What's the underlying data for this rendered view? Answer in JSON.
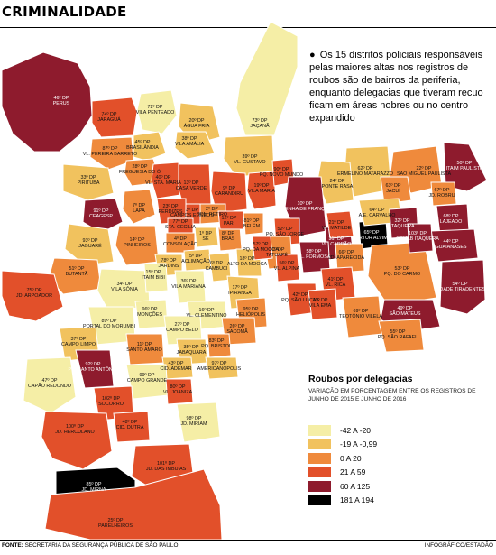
{
  "title": "CRIMINALIDADE",
  "note": "Os 15 distritos policiais responsáveis pelas maiores altas nos registros de roubos são de bairros da periferia, enquanto delegacias que tiveram recuo ficam em áreas nobres ou no centro expandido",
  "legend": {
    "title": "Roubos por delegacias",
    "subtitle": "VARIAÇÃO EM PORCENTAGEM ENTRE OS REGISTROS DE JUNHO DE 2015 E JUNHO DE 2016",
    "items": [
      {
        "label": "-42 A -20",
        "color": "#f5eea6"
      },
      {
        "label": "-19 A -0,99",
        "color": "#f1c25e"
      },
      {
        "label": "0 A 20",
        "color": "#ef8a3c"
      },
      {
        "label": "21 A 59",
        "color": "#e2502a"
      },
      {
        "label": "60 A 125",
        "color": "#8e1b2d"
      },
      {
        "label": "181 A 194",
        "color": "#000000"
      }
    ]
  },
  "source_label": "FONTE:",
  "source_text": "SECRETARIA DA SEGURANÇA PÚBLICA DE SÃO PAULO",
  "credit": "INFOGRÁFICO/ESTADÃO",
  "districts": [
    {
      "code": "46º DP",
      "name": "PERUS",
      "class": 4
    },
    {
      "code": "72º DP",
      "name": "VILA PENTEADO",
      "class": 0
    },
    {
      "code": "74º DP",
      "name": "JARAGUÁ",
      "class": 3
    },
    {
      "code": "87º DP",
      "name": "VL. PEREIRA BARRETO",
      "class": 2
    },
    {
      "code": "45º DP",
      "name": "BRASILÂNDIA",
      "class": 1
    },
    {
      "code": "20º DP",
      "name": "ÁGUA FRIA",
      "class": 1
    },
    {
      "code": "73º DP",
      "name": "JAÇANÃ",
      "class": 0
    },
    {
      "code": "38º DP",
      "name": "VILA AMÁLIA",
      "class": 1
    },
    {
      "code": "39º DP",
      "name": "VL. GUSTAVO",
      "class": 1
    },
    {
      "code": "33º DP",
      "name": "PIRITUBA",
      "class": 1
    },
    {
      "code": "28º DP",
      "name": "FREGUESIA DO Ó",
      "class": 2
    },
    {
      "code": "40º DP",
      "name": "VL. STA. MARIA",
      "class": 3
    },
    {
      "code": "13º DP",
      "name": "CASA VERDE",
      "class": 3
    },
    {
      "code": "9º DP",
      "name": "CARANDIRU",
      "class": 3
    },
    {
      "code": "19º DP",
      "name": "VILA MARIA",
      "class": 3
    },
    {
      "code": "90º DP",
      "name": "PQ. NOVO MUNDO",
      "class": 3
    },
    {
      "code": "62º DP",
      "name": "ERMELINO MATARAZZO",
      "class": 1
    },
    {
      "code": "24º DP",
      "name": "PONTE RASA",
      "class": 1
    },
    {
      "code": "22º DP",
      "name": "SÃO MIGUEL PAULISTA",
      "class": 2
    },
    {
      "code": "63º DP",
      "name": "JACUÍ",
      "class": 2
    },
    {
      "code": "50º DP",
      "name": "ITAIM PAULISTA",
      "class": 4
    },
    {
      "code": "67º DP",
      "name": "JD. ROBRU",
      "class": 2
    },
    {
      "code": "91º DP",
      "name": "CEAGESP",
      "class": 4
    },
    {
      "code": "7º DP",
      "name": "LAPA",
      "class": 2
    },
    {
      "code": "23º DP",
      "name": "PERDIZES",
      "class": 3
    },
    {
      "code": "2º DP",
      "name": "BOM RETIRO",
      "class": 2
    },
    {
      "code": "3º DP",
      "name": "CAMPOS ELÍSEOS",
      "class": 3
    },
    {
      "code": "77º DP",
      "name": "STA. CECÍLIA",
      "class": 3
    },
    {
      "code": "8º DP",
      "name": "BRÁS",
      "class": 2
    },
    {
      "code": "12º DP",
      "name": "PARI",
      "class": 3
    },
    {
      "code": "81º DP",
      "name": "BELÉM",
      "class": 2
    },
    {
      "code": "10º DP",
      "name": "PENHA DE FRANÇA",
      "class": 4
    },
    {
      "code": "31º DP",
      "name": "VL. CARRÃO",
      "class": 4
    },
    {
      "code": "52º DP",
      "name": "PQ. SÃO JORGE",
      "class": 3
    },
    {
      "code": "30º DP",
      "name": "TATUAPÉ",
      "class": 2
    },
    {
      "code": "58º DP",
      "name": "VL. FORMOSA",
      "class": 4
    },
    {
      "code": "21º DP",
      "name": "VL. MATILDE",
      "class": 3
    },
    {
      "code": "65º DP",
      "name": "ARTUR ALVIM",
      "class": 5
    },
    {
      "code": "64º DP",
      "name": "A.E. CARVALHO",
      "class": 1
    },
    {
      "code": "66º DP",
      "name": "JD. APARECIDA",
      "class": 2
    },
    {
      "code": "41º DP",
      "name": "VL. RICA",
      "class": 3
    },
    {
      "code": "53º DP",
      "name": "PQ. DO CARMO",
      "class": 2
    },
    {
      "code": "68º DP",
      "name": "LAJEADO",
      "class": 4
    },
    {
      "code": "44º DP",
      "name": "GUAIANASES",
      "class": 4
    },
    {
      "code": "32º DP",
      "name": "ITAQUERA",
      "class": 4
    },
    {
      "code": "103º DP",
      "name": "COHAB ITAQUERA",
      "class": 4
    },
    {
      "code": "54º DP",
      "name": "CIDADE TIRADENTES",
      "class": 4
    },
    {
      "code": "93º DP",
      "name": "JAGUARÉ",
      "class": 1
    },
    {
      "code": "14º DP",
      "name": "PINHEIROS",
      "class": 2
    },
    {
      "code": "4º DP",
      "name": "CONSOLAÇÃO",
      "class": 2
    },
    {
      "code": "1º DP",
      "name": "SÉ",
      "class": 1
    },
    {
      "code": "5º DP",
      "name": "ACLIMAÇÃO",
      "class": 1
    },
    {
      "code": "78º DP",
      "name": "JARDINS",
      "class": 1
    },
    {
      "code": "18º DP",
      "name": "ALTO DA MOOCA",
      "class": 1
    },
    {
      "code": "57º DP",
      "name": "PQ. DA MOOCA",
      "class": 3
    },
    {
      "code": "56º DP",
      "name": "VL. ALPINA",
      "class": 3
    },
    {
      "code": "6º DP",
      "name": "CAMBUCI",
      "class": 1
    },
    {
      "code": "51º DP",
      "name": "BUTANTÃ",
      "class": 2
    },
    {
      "code": "34º DP",
      "name": "VILA SÔNIA",
      "class": 0
    },
    {
      "code": "15º DP",
      "name": "ITAIM BIBI",
      "class": 0
    },
    {
      "code": "36º DP",
      "name": "VILA MARIANA",
      "class": 0
    },
    {
      "code": "17º DP",
      "name": "IPIRANGA",
      "class": 1
    },
    {
      "code": "42º DP",
      "name": "PQ. SÃO LUCAS",
      "class": 3
    },
    {
      "code": "70º DP",
      "name": "VILA EMA",
      "class": 3
    },
    {
      "code": "69º DP",
      "name": "TEOTÔNIO VILELA",
      "class": 2
    },
    {
      "code": "49º DP",
      "name": "SÃO MATEUS",
      "class": 4
    },
    {
      "code": "75º DP",
      "name": "JD. ARPOADOR",
      "class": 3
    },
    {
      "code": "96º DP",
      "name": "MONÇÕES",
      "class": 0
    },
    {
      "code": "16º DP",
      "name": "VL. CLEMENTINO",
      "class": 0
    },
    {
      "code": "95º DP",
      "name": "HELIÓPOLIS",
      "class": 2
    },
    {
      "code": "26º DP",
      "name": "SACOMÃ",
      "class": 2
    },
    {
      "code": "55º DP",
      "name": "PQ. SÃO RAFAEL",
      "class": 2
    },
    {
      "code": "89º DP",
      "name": "PORTAL DO MORUMBI",
      "class": 0
    },
    {
      "code": "27º DP",
      "name": "CAMPO BELO",
      "class": 0
    },
    {
      "code": "37º DP",
      "name": "CAMPO LIMPO",
      "class": 1
    },
    {
      "code": "11º DP",
      "name": "SANTO AMARO",
      "class": 2
    },
    {
      "code": "35º DP",
      "name": "JABAQUARA",
      "class": 1
    },
    {
      "code": "83º DP",
      "name": "PQ. BRISTOL",
      "class": 2
    },
    {
      "code": "97º DP",
      "name": "AMERICANÓPOLIS",
      "class": 1
    },
    {
      "code": "43º DP",
      "name": "CID. ADEMAR",
      "class": 1
    },
    {
      "code": "47º DP",
      "name": "CAPÃO REDONDO",
      "class": 0
    },
    {
      "code": "92º DP",
      "name": "PQ. SANTO ANTÔNIO",
      "class": 4
    },
    {
      "code": "99º DP",
      "name": "CAMPO GRANDE",
      "class": 0
    },
    {
      "code": "102º DP",
      "name": "SOCORRO",
      "class": 3
    },
    {
      "code": "80º DP",
      "name": "VL. JOANIZA",
      "class": 3
    },
    {
      "code": "98º DP",
      "name": "JD. MIRIAM",
      "class": 0
    },
    {
      "code": "100º DP",
      "name": "JD. HERCULANO",
      "class": 3
    },
    {
      "code": "48º DP",
      "name": "CID. DUTRA",
      "class": 3
    },
    {
      "code": "101º DP",
      "name": "JD. DAS IMBUIAS",
      "class": 3
    },
    {
      "code": "85º DP",
      "name": "JD. MIRNA",
      "class": 5
    },
    {
      "code": "25º DP",
      "name": "PARELHEIROS",
      "class": 3
    }
  ]
}
